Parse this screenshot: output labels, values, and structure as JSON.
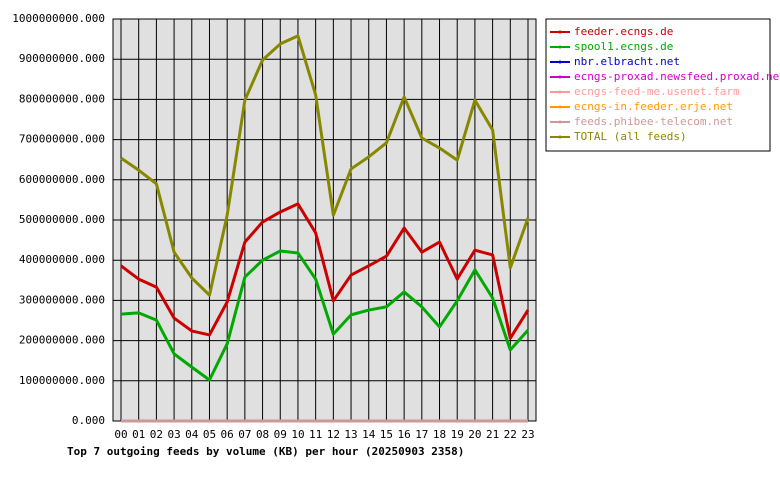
{
  "chart_data": {
    "type": "line",
    "title": "Top 7 outgoing feeds by volume (KB) per hour (20250903 2358)",
    "categories": [
      "00",
      "01",
      "02",
      "03",
      "04",
      "05",
      "06",
      "07",
      "08",
      "09",
      "10",
      "11",
      "12",
      "13",
      "14",
      "15",
      "16",
      "17",
      "18",
      "19",
      "20",
      "21",
      "22",
      "23"
    ],
    "series": [
      {
        "name": "feeder.ecngs.de",
        "color": "#cc0000",
        "values": [
          386000000,
          353000000,
          333000000,
          256000000,
          224000000,
          214000000,
          296000000,
          445000000,
          495000000,
          520000000,
          540000000,
          468000000,
          299000000,
          363000000,
          386000000,
          410000000,
          480000000,
          420000000,
          445000000,
          353000000,
          425000000,
          413000000,
          206000000,
          276000000
        ]
      },
      {
        "name": "spool1.ecngs.de",
        "color": "#00aa00",
        "values": [
          266000000,
          269000000,
          251000000,
          167000000,
          134000000,
          102000000,
          192000000,
          358000000,
          400000000,
          423000000,
          418000000,
          353000000,
          216000000,
          264000000,
          276000000,
          284000000,
          321000000,
          284000000,
          234000000,
          299000000,
          376000000,
          306000000,
          177000000,
          226000000
        ]
      },
      {
        "name": "nbr.elbracht.net",
        "color": "#0000cc",
        "values": [
          0,
          0,
          0,
          0,
          0,
          0,
          0,
          0,
          0,
          0,
          0,
          0,
          0,
          0,
          0,
          0,
          0,
          0,
          0,
          0,
          0,
          0,
          0,
          0
        ]
      },
      {
        "name": "ecngs-proxad.newsfeed.proxad.net",
        "color": "#cc00cc",
        "values": [
          0,
          0,
          0,
          0,
          0,
          0,
          0,
          0,
          0,
          0,
          0,
          0,
          0,
          0,
          0,
          0,
          0,
          0,
          0,
          0,
          0,
          0,
          0,
          0
        ]
      },
      {
        "name": "ecngs-feed-me.usenet.farm",
        "color": "#ff9999",
        "values": [
          0,
          0,
          0,
          0,
          0,
          0,
          0,
          0,
          0,
          0,
          0,
          0,
          0,
          0,
          0,
          0,
          0,
          0,
          0,
          0,
          0,
          0,
          0,
          0
        ]
      },
      {
        "name": "ecngs-in.feeder.erje.net",
        "color": "#ff9900",
        "values": [
          0,
          0,
          0,
          0,
          0,
          0,
          0,
          0,
          0,
          0,
          0,
          0,
          0,
          0,
          0,
          0,
          0,
          0,
          0,
          0,
          0,
          0,
          0,
          0
        ]
      },
      {
        "name": "feeds.phibee-telecom.net",
        "color": "#cc9999",
        "values": [
          0,
          0,
          0,
          0,
          0,
          0,
          0,
          0,
          0,
          0,
          0,
          0,
          0,
          0,
          0,
          0,
          0,
          0,
          0,
          0,
          0,
          0,
          0,
          0
        ]
      },
      {
        "name": "TOTAL (all feeds)",
        "color": "#888800",
        "values": [
          654000000,
          624000000,
          590000000,
          420000000,
          356000000,
          313000000,
          512000000,
          798000000,
          898000000,
          938000000,
          958000000,
          811000000,
          512000000,
          627000000,
          657000000,
          692000000,
          806000000,
          704000000,
          679000000,
          649000000,
          798000000,
          724000000,
          381000000,
          505000000
        ]
      }
    ],
    "ylim": [
      0,
      1000000000
    ],
    "yticks": [
      {
        "value": 0,
        "label": "0.000"
      },
      {
        "value": 100000000,
        "label": "100000000.000"
      },
      {
        "value": 200000000,
        "label": "200000000.000"
      },
      {
        "value": 300000000,
        "label": "300000000.000"
      },
      {
        "value": 400000000,
        "label": "400000000.000"
      },
      {
        "value": 500000000,
        "label": "500000000.000"
      },
      {
        "value": 600000000,
        "label": "600000000.000"
      },
      {
        "value": 700000000,
        "label": "700000000.000"
      },
      {
        "value": 800000000,
        "label": "800000000.000"
      },
      {
        "value": 900000000,
        "label": "900000000.000"
      },
      {
        "value": 1000000000,
        "label": "1000000000.000"
      }
    ],
    "grid": true
  }
}
